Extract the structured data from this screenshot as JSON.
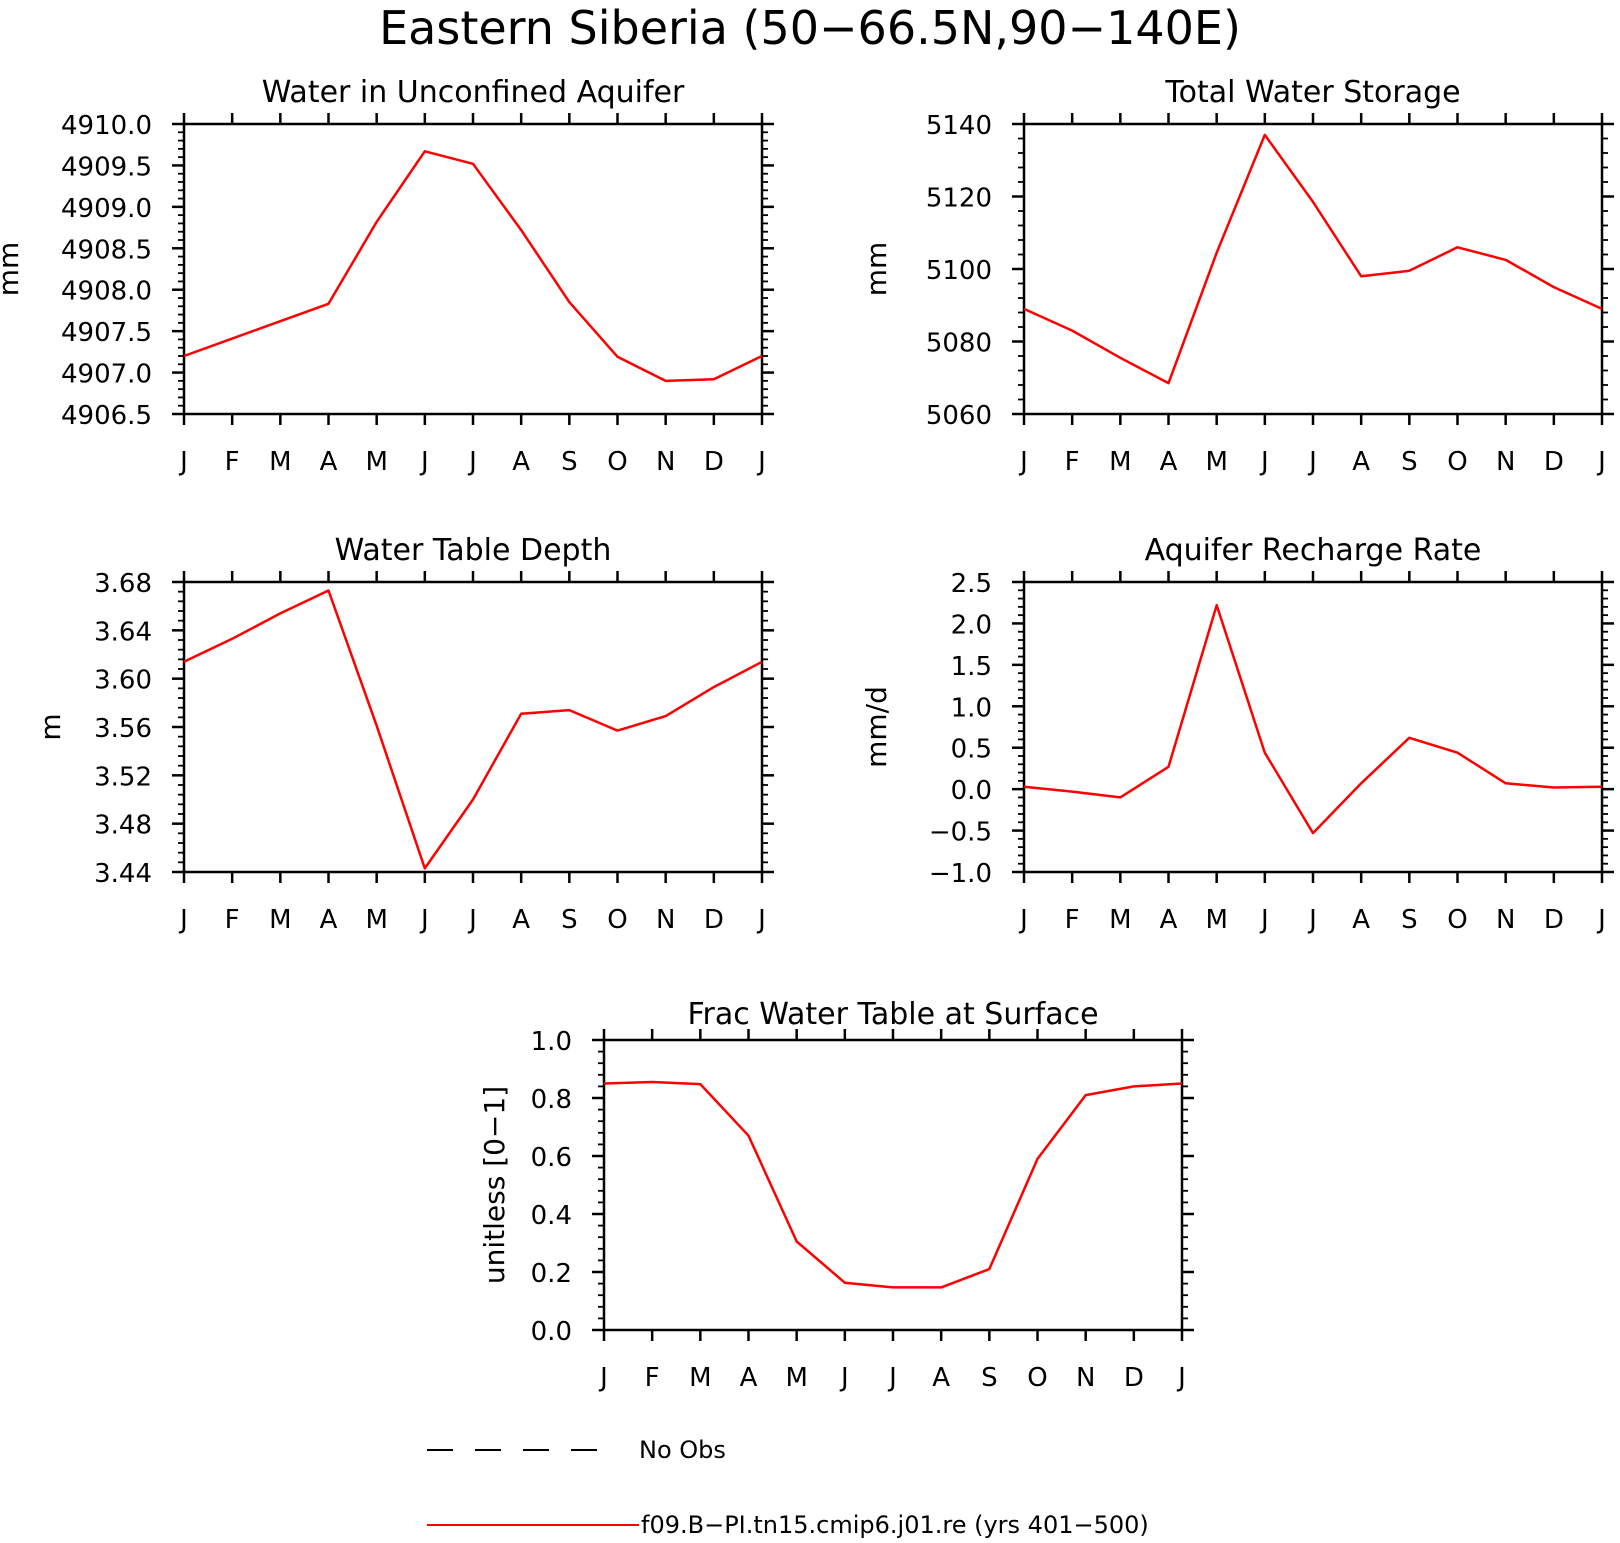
{
  "figure": {
    "title": "Eastern Siberia (50−66.5N,90−140E)"
  },
  "legend": {
    "items": [
      {
        "label": "No Obs",
        "color": "#000000",
        "dashed": true
      },
      {
        "label": "f09.B−PI.tn15.cmip6.j01.re (yrs 401−500)",
        "color": "#ff0000",
        "dashed": false
      }
    ]
  },
  "chart_data": [
    {
      "type": "line",
      "title": "Water in Unconfined Aquifer",
      "xlabel": "",
      "ylabel": "mm",
      "categories": [
        "J",
        "F",
        "M",
        "A",
        "M",
        "J",
        "J",
        "A",
        "S",
        "O",
        "N",
        "D",
        "J"
      ],
      "ylim": [
        4906.5,
        4910.0
      ],
      "yticks": [
        "4910.0",
        "4909.5",
        "4909.0",
        "4908.5",
        "4908.0",
        "4907.5",
        "4907.0",
        "4906.5"
      ],
      "series": [
        {
          "values": [
            4907.2,
            4907.41,
            4907.62,
            4907.83,
            4908.82,
            4909.67,
            4909.52,
            4908.72,
            4907.85,
            4907.19,
            4906.9,
            4906.92,
            4907.2
          ]
        }
      ]
    },
    {
      "type": "line",
      "title": "Total Water Storage",
      "xlabel": "",
      "ylabel": "mm",
      "categories": [
        "J",
        "F",
        "M",
        "A",
        "M",
        "J",
        "J",
        "A",
        "S",
        "O",
        "N",
        "D",
        "J"
      ],
      "ylim": [
        5060,
        5140
      ],
      "yticks": [
        "5140",
        "5120",
        "5100",
        "5080",
        "5060"
      ],
      "series": [
        {
          "values": [
            5089,
            5083,
            5075.5,
            5068.5,
            5104.5,
            5137,
            5118.5,
            5098,
            5099.5,
            5106,
            5102.5,
            5095,
            5089
          ]
        }
      ]
    },
    {
      "type": "line",
      "title": "Water Table Depth",
      "xlabel": "",
      "ylabel": "m",
      "categories": [
        "J",
        "F",
        "M",
        "A",
        "M",
        "J",
        "J",
        "A",
        "S",
        "O",
        "N",
        "D",
        "J"
      ],
      "ylim": [
        3.44,
        3.68
      ],
      "yticks": [
        "3.68",
        "3.64",
        "3.60",
        "3.56",
        "3.52",
        "3.48",
        "3.44"
      ],
      "series": [
        {
          "values": [
            3.614,
            3.633,
            3.654,
            3.673,
            3.561,
            3.443,
            3.5,
            3.571,
            3.574,
            3.557,
            3.569,
            3.593,
            3.614
          ]
        }
      ]
    },
    {
      "type": "line",
      "title": "Aquifer Recharge Rate",
      "xlabel": "",
      "ylabel": "mm/d",
      "categories": [
        "J",
        "F",
        "M",
        "A",
        "M",
        "J",
        "J",
        "A",
        "S",
        "O",
        "N",
        "D",
        "J"
      ],
      "ylim": [
        -1.0,
        2.5
      ],
      "yticks": [
        "2.5",
        "2.0",
        "1.5",
        "1.0",
        "0.5",
        "0.0",
        "−0.5",
        "−1.0"
      ],
      "series": [
        {
          "values": [
            0.03,
            -0.03,
            -0.1,
            0.27,
            2.22,
            0.44,
            -0.53,
            0.07,
            0.62,
            0.44,
            0.07,
            0.02,
            0.03
          ]
        }
      ]
    },
    {
      "type": "line",
      "title": "Frac Water Table at Surface",
      "xlabel": "",
      "ylabel": "unitless [0−1]",
      "categories": [
        "J",
        "F",
        "M",
        "A",
        "M",
        "J",
        "J",
        "A",
        "S",
        "O",
        "N",
        "D",
        "J"
      ],
      "ylim": [
        0.0,
        1.0
      ],
      "yticks": [
        "1.0",
        "0.8",
        "0.6",
        "0.4",
        "0.2",
        "0.0"
      ],
      "series": [
        {
          "values": [
            0.85,
            0.855,
            0.848,
            0.67,
            0.305,
            0.163,
            0.147,
            0.147,
            0.21,
            0.59,
            0.81,
            0.84,
            0.85
          ]
        }
      ]
    }
  ]
}
